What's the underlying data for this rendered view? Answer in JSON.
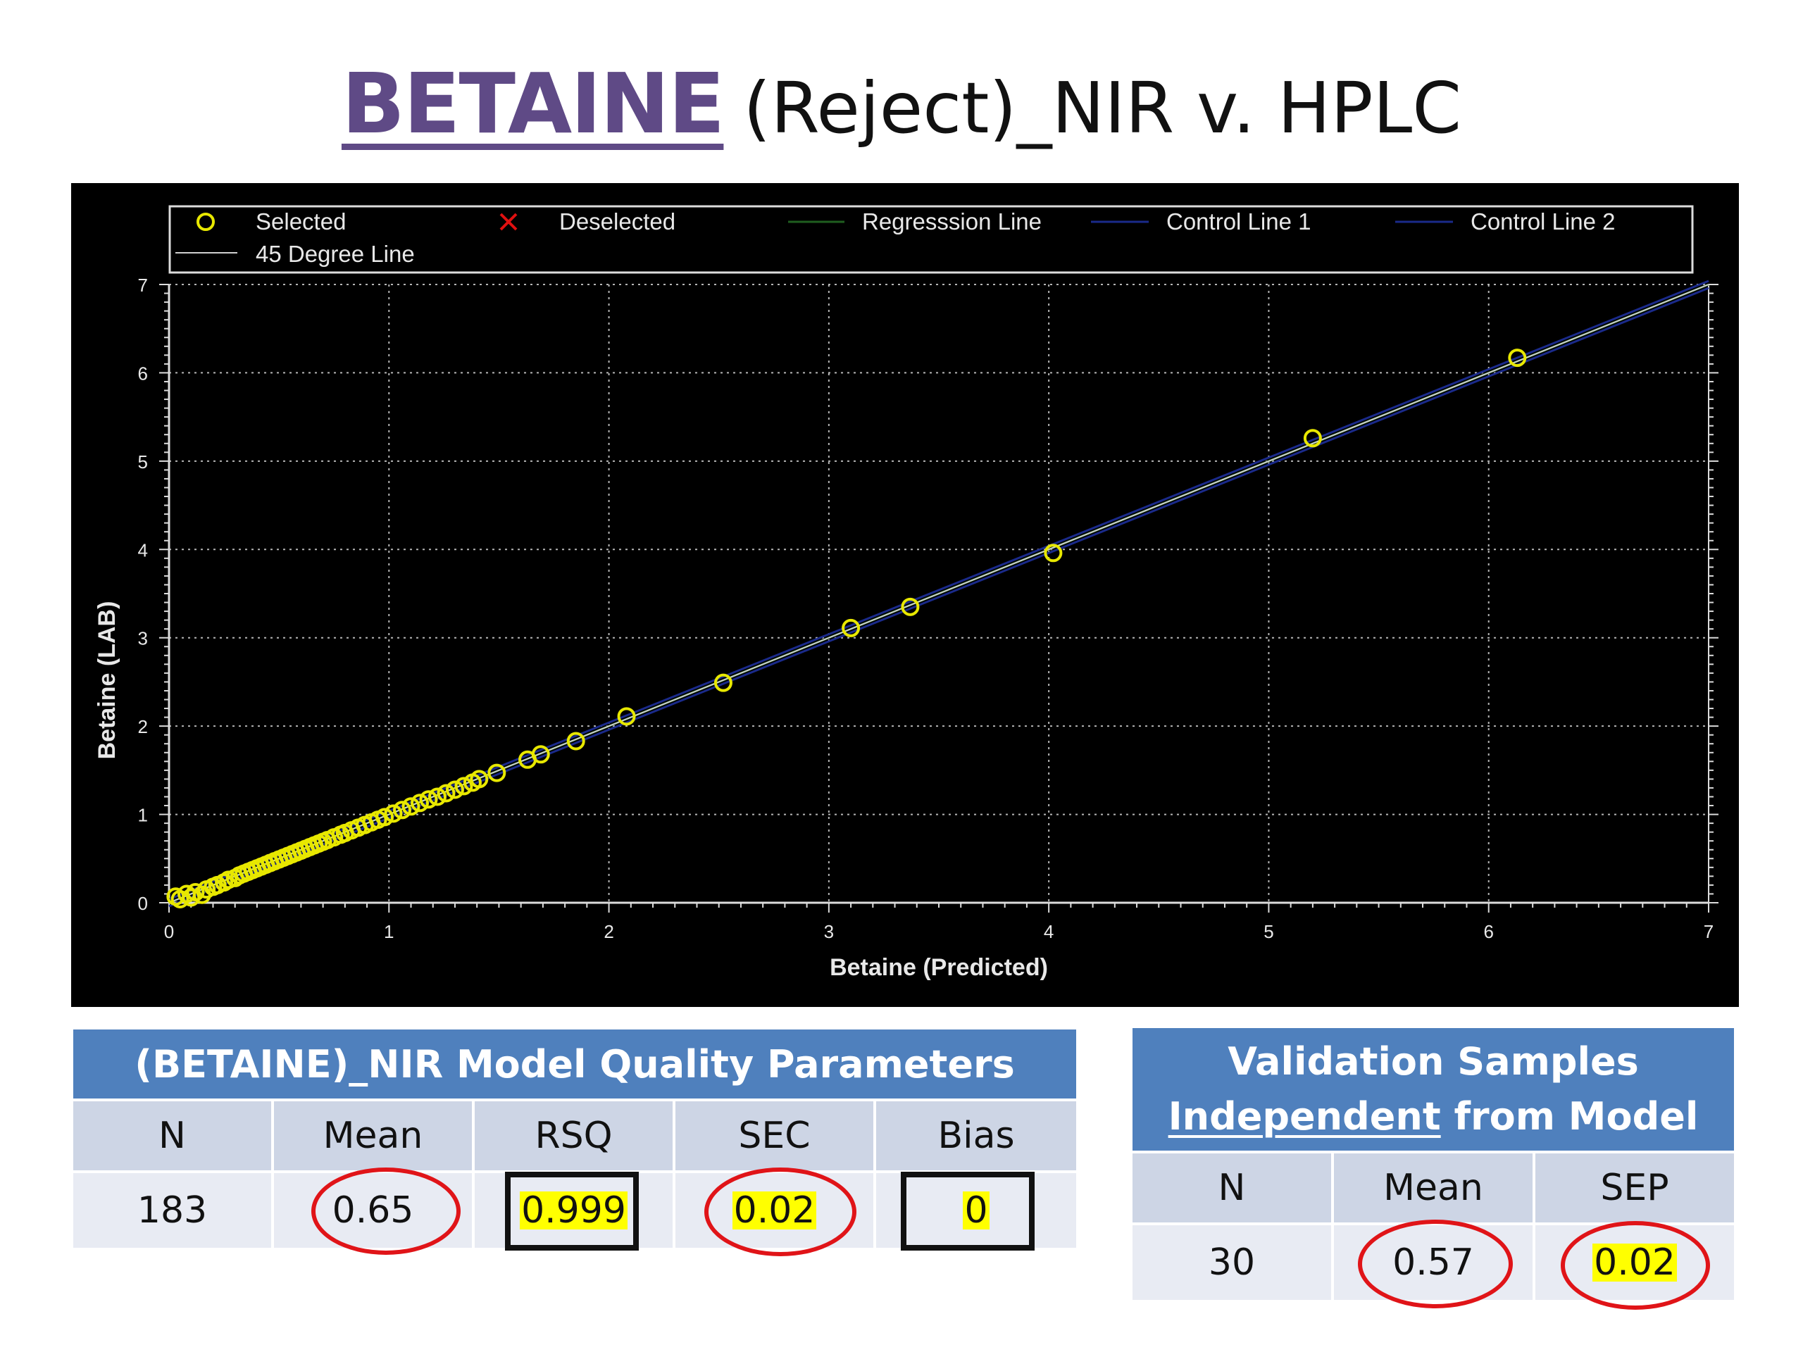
{
  "title": {
    "main": "BETAINE",
    "rest": "(Reject)_NIR v. HPLC"
  },
  "legend": {
    "items": [
      {
        "label": "Selected",
        "symbol": "circle",
        "color": "#e8e800"
      },
      {
        "label": "Deselected",
        "symbol": "cross",
        "color": "#e01010"
      },
      {
        "label": "Regresssion Line",
        "symbol": "line",
        "color": "#1f5e1f"
      },
      {
        "label": "Control Line 1",
        "symbol": "line",
        "color": "#1a2a8a"
      },
      {
        "label": "Control Line 2",
        "symbol": "line",
        "color": "#1a2a8a"
      },
      {
        "label": "45 Degree Line",
        "symbol": "line",
        "color": "#d0d0d0"
      }
    ]
  },
  "chart_data": {
    "type": "scatter",
    "title": "",
    "xlabel": "Betaine (Predicted)",
    "ylabel": "Betaine (LAB)",
    "xlim": [
      0,
      7
    ],
    "ylim": [
      0,
      7
    ],
    "xticks": [
      "0",
      "1",
      "2",
      "3",
      "4",
      "5",
      "6",
      "7"
    ],
    "yticks": [
      "0",
      "1",
      "2",
      "3",
      "4",
      "5",
      "6",
      "7"
    ],
    "grid": true,
    "legend_position": "top",
    "series": [
      {
        "name": "Selected",
        "color": "#e8e800",
        "x": [
          0.03,
          0.05,
          0.08,
          0.1,
          0.12,
          0.15,
          0.17,
          0.2,
          0.22,
          0.25,
          0.27,
          0.3,
          0.32,
          0.34,
          0.36,
          0.38,
          0.4,
          0.42,
          0.44,
          0.46,
          0.48,
          0.5,
          0.52,
          0.54,
          0.56,
          0.58,
          0.6,
          0.62,
          0.64,
          0.66,
          0.68,
          0.7,
          0.72,
          0.75,
          0.78,
          0.8,
          0.83,
          0.86,
          0.89,
          0.92,
          0.95,
          0.98,
          1.02,
          1.06,
          1.1,
          1.14,
          1.18,
          1.22,
          1.26,
          1.3,
          1.34,
          1.38,
          1.41,
          1.49,
          1.63,
          1.69,
          1.85,
          2.08,
          2.52,
          3.1,
          3.37,
          4.02,
          5.2,
          6.13
        ],
        "y": [
          0.07,
          0.04,
          0.1,
          0.06,
          0.12,
          0.09,
          0.15,
          0.18,
          0.2,
          0.23,
          0.26,
          0.28,
          0.31,
          0.33,
          0.35,
          0.37,
          0.39,
          0.41,
          0.43,
          0.45,
          0.47,
          0.49,
          0.51,
          0.53,
          0.55,
          0.57,
          0.59,
          0.61,
          0.63,
          0.65,
          0.67,
          0.69,
          0.71,
          0.74,
          0.77,
          0.79,
          0.82,
          0.85,
          0.88,
          0.91,
          0.94,
          0.97,
          1.01,
          1.05,
          1.09,
          1.13,
          1.17,
          1.2,
          1.24,
          1.28,
          1.32,
          1.36,
          1.4,
          1.47,
          1.62,
          1.68,
          1.83,
          2.11,
          2.49,
          3.11,
          3.35,
          3.96,
          5.26,
          6.17
        ]
      },
      {
        "name": "Regresssion Line",
        "color": "#1f5e1f",
        "x": [
          0,
          7
        ],
        "y": [
          0,
          7
        ]
      },
      {
        "name": "Control Line 1",
        "color": "#1a2a8a",
        "x": [
          0,
          7
        ],
        "y": [
          0.04,
          7.04
        ]
      },
      {
        "name": "Control Line 2",
        "color": "#1a2a8a",
        "x": [
          0,
          7
        ],
        "y": [
          -0.04,
          6.96
        ]
      },
      {
        "name": "45 Degree Line",
        "color": "#d0d0d0",
        "x": [
          0,
          7
        ],
        "y": [
          0,
          7
        ]
      }
    ]
  },
  "model_table": {
    "header": "(BETAINE)_NIR Model Quality Parameters",
    "columns": [
      "N",
      "Mean",
      "RSQ",
      "SEC",
      "Bias"
    ],
    "values": [
      "183",
      "0.65",
      "0.999",
      "0.02",
      "0"
    ]
  },
  "validation_table": {
    "header_line1": "Validation Samples",
    "header_line2_underlined": "Independent",
    "header_line2_rest": " from Model",
    "columns": [
      "N",
      "Mean",
      "SEP"
    ],
    "values": [
      "30",
      "0.57",
      "0.02"
    ]
  },
  "colors": {
    "title": "#5f4a86",
    "table_header": "#4f80bd",
    "table_cell": "#cdd5e5",
    "highlight": "#ffff00",
    "ring": "#e01418"
  }
}
